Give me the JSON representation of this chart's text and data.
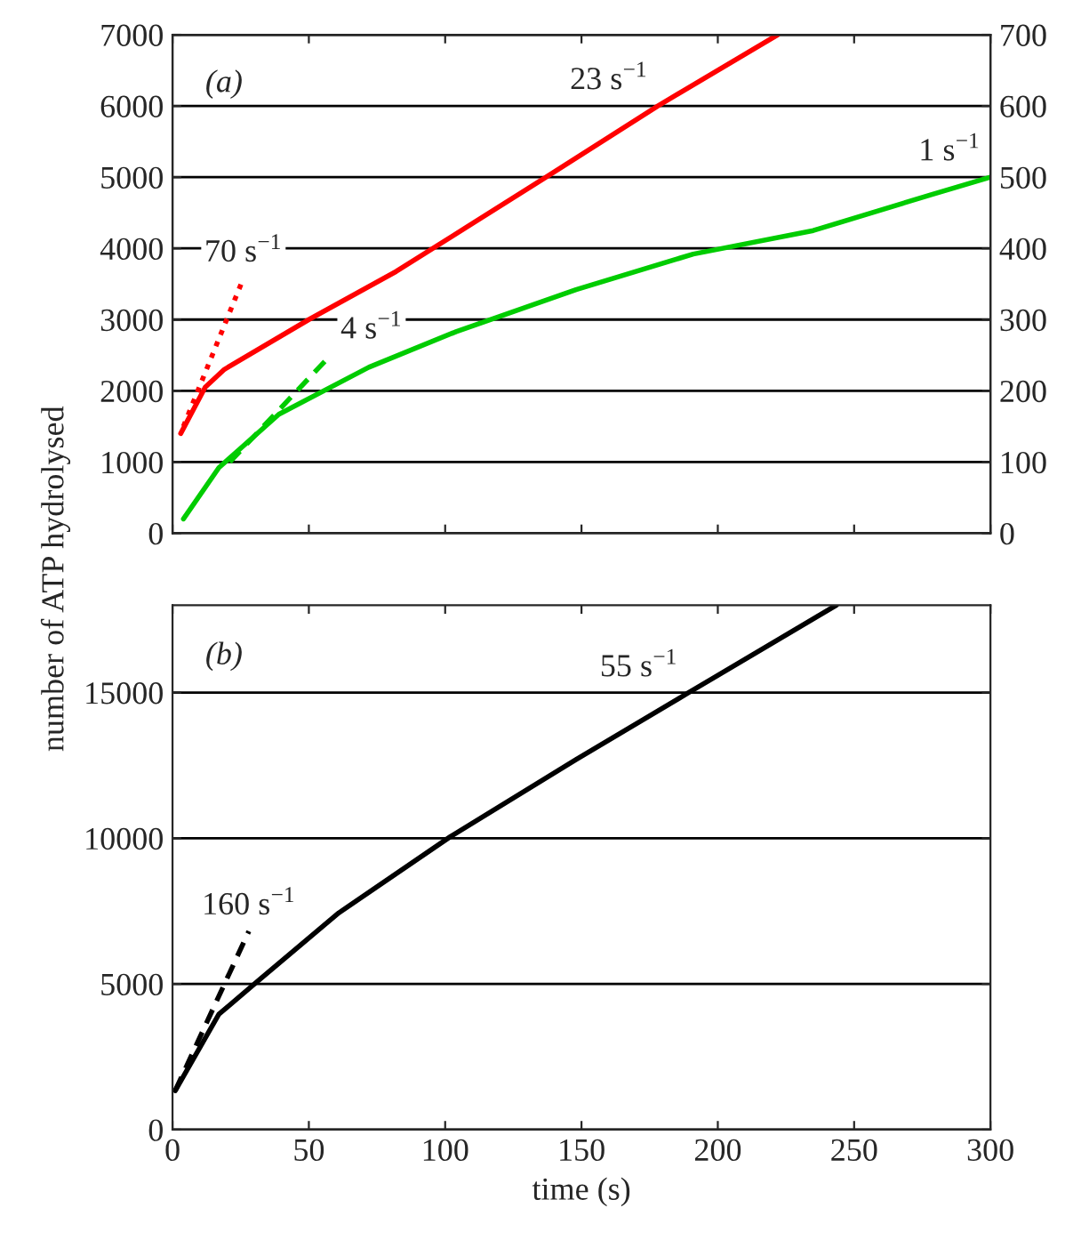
{
  "chart_data": [
    {
      "type": "line",
      "xlim": [
        0,
        300
      ],
      "ylim": [
        0,
        7000
      ],
      "yticks": [
        0,
        1000,
        2000,
        3000,
        4000,
        5000,
        6000,
        7000
      ],
      "y2lim": [
        0,
        700
      ],
      "y2ticks": [
        0,
        100,
        200,
        300,
        400,
        500,
        600,
        700
      ],
      "tick_labels": "y",
      "grid": "y",
      "annotations": [
        "(a)",
        {
          "text": "70 s$^{−1}$",
          "x": 26,
          "y": 3580
        },
        {
          "text": "23 s$^{−1}$",
          "x": 178,
          "y": 6000
        },
        {
          "text": "4 s$^{−1}$",
          "x": 58,
          "y": 2500
        },
        {
          "text": "1 s$^{−1}$",
          "x": 300,
          "y": 5000
        }
      ],
      "series": [
        {
          "color": "#ff0000",
          "line_style": "solid",
          "x": [
            3,
            12,
            19,
            50,
            82,
            137,
            178,
            222
          ],
          "values": [
            1400,
            2050,
            2300,
            3000,
            3675,
            5000,
            6000,
            7000
          ]
        },
        {
          "color": "#ff0000",
          "line_style": "dotted",
          "x": [
            4,
            26
          ],
          "values": [
            1500,
            3580
          ]
        },
        {
          "color": "#00cc00",
          "line_style": "solid",
          "axis": "y2",
          "x": [
            4,
            17,
            39,
            72,
            104,
            148,
            191,
            235,
            278,
            300
          ],
          "values": [
            20,
            92,
            167,
            233,
            283,
            342,
            392,
            425,
            475,
            500
          ]
        },
        {
          "color": "#00cc00",
          "line_style": "dashed",
          "axis": "y2",
          "x": [
            21,
            58
          ],
          "values": [
            100,
            250
          ]
        }
      ]
    },
    {
      "type": "line",
      "xlim": [
        0,
        300
      ],
      "xticks": [
        0,
        50,
        100,
        150,
        200,
        250,
        300
      ],
      "ylim": [
        0,
        18000
      ],
      "yticks": [
        0,
        5000,
        10000,
        15000
      ],
      "grid": "y",
      "xlabel": "time (s)",
      "ylabel": "number of ATP hydrolysed",
      "annotations": [
        "(b)",
        {
          "text": "160 s$^{−1}$",
          "x": 28,
          "y": 6810
        },
        {
          "text": "55 s$^{−1}$",
          "x": 189,
          "y": 14980
        }
      ],
      "series": [
        {
          "color": "#000000",
          "line_style": "solid",
          "x": [
            1,
            17,
            31,
            61,
            102,
            148,
            189,
            243.5
          ],
          "values": [
            1340,
            3960,
            5080,
            7440,
            10060,
            12700,
            14980,
            18000
          ]
        },
        {
          "color": "#000000",
          "line_style": "dashed",
          "x": [
            1,
            28
          ],
          "values": [
            1340,
            6810
          ]
        }
      ]
    }
  ]
}
